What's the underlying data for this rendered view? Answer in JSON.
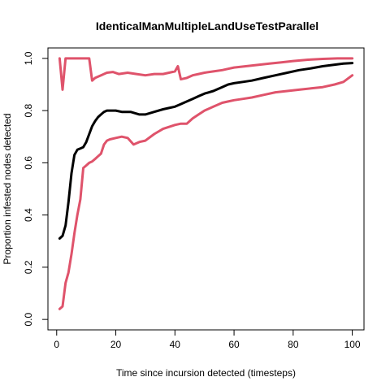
{
  "chart_data": {
    "type": "line",
    "title": "IdenticalManMultipleLandUseTestParallel",
    "xlabel": "Time since incursion detected (timesteps)",
    "ylabel": "Proportion infested nodes detected",
    "xlim": [
      -2.96,
      103.96
    ],
    "ylim": [
      -0.04,
      1.04
    ],
    "x_ticks": [
      "0",
      "20",
      "40",
      "60",
      "80",
      "100"
    ],
    "x_tick_values": [
      0,
      20,
      40,
      60,
      80,
      100
    ],
    "y_ticks": [
      "0.0",
      "0.2",
      "0.4",
      "0.6",
      "0.8",
      "1.0"
    ],
    "y_tick_values": [
      0.0,
      0.2,
      0.4,
      0.6,
      0.8,
      1.0
    ],
    "grid": false,
    "legend": "none",
    "series": [
      {
        "color": "#000000",
        "role": "mean",
        "points": [
          [
            1,
            0.31
          ],
          [
            2,
            0.32
          ],
          [
            3,
            0.36
          ],
          [
            4,
            0.45
          ],
          [
            5,
            0.56
          ],
          [
            6,
            0.63
          ],
          [
            7,
            0.65
          ],
          [
            8,
            0.655
          ],
          [
            9,
            0.66
          ],
          [
            10,
            0.68
          ],
          [
            11,
            0.71
          ],
          [
            12,
            0.74
          ],
          [
            13,
            0.76
          ],
          [
            14,
            0.775
          ],
          [
            15,
            0.785
          ],
          [
            16,
            0.795
          ],
          [
            17,
            0.8
          ],
          [
            18,
            0.8
          ],
          [
            20,
            0.8
          ],
          [
            22,
            0.795
          ],
          [
            25,
            0.795
          ],
          [
            28,
            0.785
          ],
          [
            30,
            0.785
          ],
          [
            33,
            0.795
          ],
          [
            36,
            0.805
          ],
          [
            38,
            0.81
          ],
          [
            40,
            0.815
          ],
          [
            42,
            0.825
          ],
          [
            44,
            0.835
          ],
          [
            46,
            0.845
          ],
          [
            48,
            0.855
          ],
          [
            50,
            0.865
          ],
          [
            53,
            0.875
          ],
          [
            56,
            0.89
          ],
          [
            58,
            0.9
          ],
          [
            60,
            0.905
          ],
          [
            63,
            0.91
          ],
          [
            66,
            0.915
          ],
          [
            70,
            0.925
          ],
          [
            74,
            0.935
          ],
          [
            78,
            0.945
          ],
          [
            82,
            0.955
          ],
          [
            86,
            0.962
          ],
          [
            90,
            0.97
          ],
          [
            94,
            0.976
          ],
          [
            97,
            0.98
          ],
          [
            100,
            0.982
          ]
        ]
      },
      {
        "color": "#DF536B",
        "role": "upper",
        "points": [
          [
            1,
            1.0
          ],
          [
            2,
            0.88
          ],
          [
            3,
            1.0
          ],
          [
            5,
            1.0
          ],
          [
            8,
            1.0
          ],
          [
            11,
            1.0
          ],
          [
            12,
            0.915
          ],
          [
            13,
            0.925
          ],
          [
            15,
            0.935
          ],
          [
            17,
            0.945
          ],
          [
            19,
            0.948
          ],
          [
            21,
            0.94
          ],
          [
            24,
            0.945
          ],
          [
            27,
            0.94
          ],
          [
            30,
            0.935
          ],
          [
            33,
            0.94
          ],
          [
            36,
            0.94
          ],
          [
            38,
            0.945
          ],
          [
            40,
            0.95
          ],
          [
            41,
            0.97
          ],
          [
            42,
            0.92
          ],
          [
            44,
            0.925
          ],
          [
            46,
            0.935
          ],
          [
            48,
            0.94
          ],
          [
            50,
            0.945
          ],
          [
            53,
            0.95
          ],
          [
            56,
            0.955
          ],
          [
            58,
            0.96
          ],
          [
            60,
            0.965
          ],
          [
            64,
            0.97
          ],
          [
            68,
            0.975
          ],
          [
            72,
            0.98
          ],
          [
            76,
            0.985
          ],
          [
            80,
            0.99
          ],
          [
            85,
            0.995
          ],
          [
            90,
            0.998
          ],
          [
            95,
            1.0
          ],
          [
            100,
            1.0
          ]
        ]
      },
      {
        "color": "#DF536B",
        "role": "lower",
        "points": [
          [
            1,
            0.04
          ],
          [
            2,
            0.05
          ],
          [
            3,
            0.14
          ],
          [
            4,
            0.18
          ],
          [
            5,
            0.25
          ],
          [
            6,
            0.33
          ],
          [
            7,
            0.4
          ],
          [
            8,
            0.46
          ],
          [
            9,
            0.58
          ],
          [
            10,
            0.59
          ],
          [
            11,
            0.6
          ],
          [
            12,
            0.605
          ],
          [
            13,
            0.615
          ],
          [
            14,
            0.625
          ],
          [
            15,
            0.635
          ],
          [
            16,
            0.67
          ],
          [
            17,
            0.685
          ],
          [
            18,
            0.69
          ],
          [
            20,
            0.695
          ],
          [
            22,
            0.7
          ],
          [
            24,
            0.695
          ],
          [
            26,
            0.67
          ],
          [
            28,
            0.68
          ],
          [
            30,
            0.685
          ],
          [
            33,
            0.71
          ],
          [
            36,
            0.73
          ],
          [
            40,
            0.745
          ],
          [
            42,
            0.75
          ],
          [
            44,
            0.75
          ],
          [
            46,
            0.77
          ],
          [
            48,
            0.785
          ],
          [
            50,
            0.8
          ],
          [
            53,
            0.815
          ],
          [
            56,
            0.83
          ],
          [
            58,
            0.835
          ],
          [
            60,
            0.84
          ],
          [
            63,
            0.845
          ],
          [
            66,
            0.85
          ],
          [
            70,
            0.86
          ],
          [
            74,
            0.87
          ],
          [
            78,
            0.875
          ],
          [
            82,
            0.88
          ],
          [
            86,
            0.885
          ],
          [
            90,
            0.89
          ],
          [
            94,
            0.9
          ],
          [
            97,
            0.91
          ],
          [
            100,
            0.935
          ]
        ]
      }
    ]
  }
}
